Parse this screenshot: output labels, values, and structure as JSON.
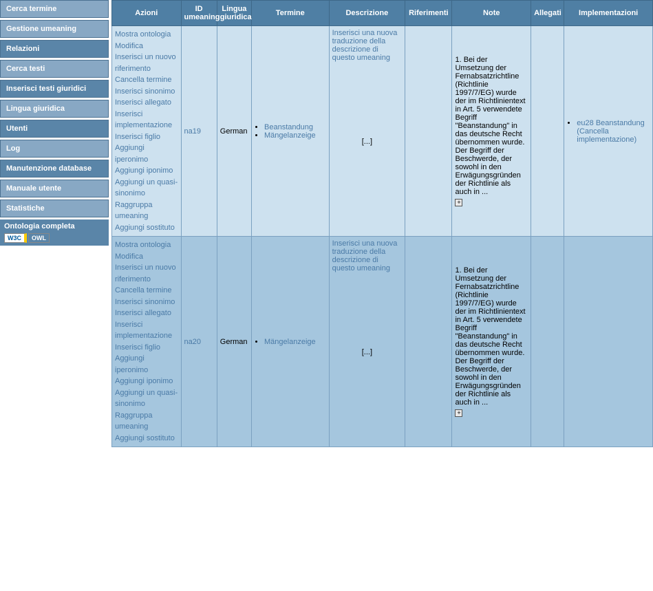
{
  "colors": {
    "header_bg": "#4f7fa4",
    "sidebar_bg": "#5a85a8",
    "sidebar_light_bg": "#88a8c4",
    "row_light": "#cde1ef",
    "row_dark": "#a5c6de",
    "link": "#4a7aa6",
    "border": "#7aa0c0"
  },
  "sidebar": {
    "items": [
      {
        "label": "Cerca termine",
        "light": true
      },
      {
        "label": "Gestione umeaning",
        "light": true
      },
      {
        "label": "Relazioni",
        "light": false
      },
      {
        "label": "Cerca testi",
        "light": true
      },
      {
        "label": "Inserisci testi giuridici",
        "light": false
      },
      {
        "label": "Lingua giuridica",
        "light": true
      },
      {
        "label": "Utenti",
        "light": false
      },
      {
        "label": "Log",
        "light": true
      },
      {
        "label": "Manutenzione database",
        "light": false
      },
      {
        "label": "Manuale utente",
        "light": true
      },
      {
        "label": "Statistiche",
        "light": true
      }
    ],
    "ontologia_label": "Ontologia completa",
    "w3c": "W3C",
    "owl": "OWL"
  },
  "table": {
    "columns": {
      "azioni": "Azioni",
      "id": "ID umeaning",
      "lingua": "Lingua giuridica",
      "termine": "Termine",
      "descrizione": "Descrizione",
      "riferimenti": "Riferimenti",
      "note": "Note",
      "allegati": "Allegati",
      "implementazioni": "Implementazioni"
    },
    "col_widths": {
      "azioni": 100,
      "id": 52,
      "lingua": 50,
      "termine": 112,
      "descrizione": 110,
      "riferimenti": 68,
      "note": 114,
      "allegati": 48,
      "implementazioni": 128
    },
    "action_labels": [
      "Mostra ontologia",
      "Modifica",
      "Inserisci un nuovo riferimento",
      "Cancella termine",
      "Inserisci sinonimo",
      "Inserisci allegato",
      "Inserisci implementazione",
      "Inserisci figlio",
      "Aggiungi iperonimo",
      "Aggiungi iponimo",
      "Aggiungi un quasi-sinonimo",
      "Raggruppa umeaning",
      "Aggiungi sostituto"
    ],
    "rows": [
      {
        "id": "na19",
        "lingua": "German",
        "termini": [
          "Beanstandung",
          "Mängelanzeige"
        ],
        "descrizione_link": "Inserisci una nuova traduzione della descrizione di questo umeaning",
        "ellipsis": "[...]",
        "note": "1. Bei der Umsetzung der Fernabsatzrichtline (Richtlinie 1997/7/EG) wurde der im Richtlinientext in Art. 5 verwendete Begriff \"Beanstandung\" in das deutsche Recht übernommen wurde. Der Begriff der Beschwerde, der sowohl in den Erwägungsgründen der Richtlinie als auch in ...",
        "implementazioni": [
          {
            "label": "eu28 Beanstandung",
            "cancel": "(Cancella implementazione)"
          }
        ]
      },
      {
        "id": "na20",
        "lingua": "German",
        "termini": [
          "Mängelanzeige"
        ],
        "descrizione_link": "Inserisci una nuova traduzione della descrizione di questo umeaning",
        "ellipsis": "[...]",
        "note": "1. Bei der Umsetzung der Fernabsatzrichtline (Richtlinie 1997/7/EG) wurde der im Richtlinientext in Art. 5 verwendete Begriff \"Beanstandung\" in das deutsche Recht übernommen wurde. Der Begriff der Beschwerde, der sowohl in den Erwägungsgründen der Richtlinie als auch in ...",
        "implementazioni": []
      }
    ]
  }
}
